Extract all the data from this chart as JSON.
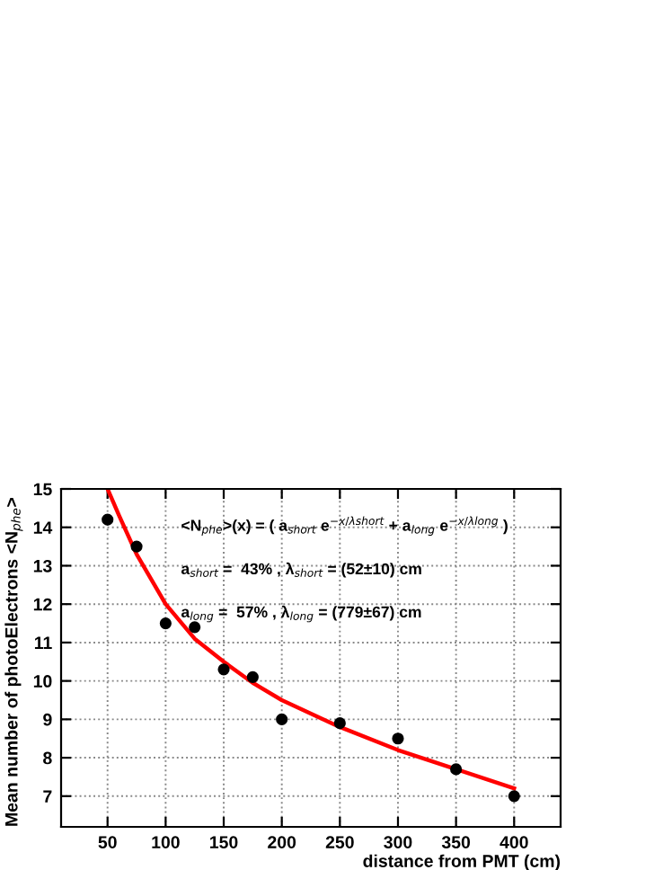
{
  "chart_data": {
    "type": "scatter",
    "xlabel": "distance from PMT (cm)",
    "ylabel": "Mean number of photoElectrons <N$_{phe}$>",
    "xlim": [
      10,
      440
    ],
    "ylim": [
      6.2,
      15
    ],
    "xticks": [
      50,
      100,
      150,
      200,
      250,
      300,
      350,
      400
    ],
    "yticks": [
      7,
      8,
      9,
      10,
      11,
      12,
      13,
      14,
      15
    ],
    "grid": true,
    "legend": false,
    "marker": "circle",
    "series": [
      {
        "color": "#000000",
        "x": [
          50,
          75,
          100,
          125,
          150,
          175,
          200,
          250,
          300,
          350,
          400
        ],
        "values": [
          14.2,
          13.5,
          11.5,
          11.4,
          10.3,
          10.1,
          9.0,
          8.9,
          8.5,
          7.7,
          7.0
        ]
      },
      {
        "type": "line",
        "color": "#ff0000",
        "marker": "none",
        "line_style": "solid",
        "x": [
          50,
          60,
          75,
          100,
          125,
          150,
          175,
          200,
          250,
          300,
          350,
          400
        ],
        "values": [
          15.0,
          14.3,
          13.3,
          12.0,
          11.1,
          10.5,
          9.95,
          9.5,
          8.8,
          8.2,
          7.7,
          7.2
        ]
      }
    ],
    "annotations": [
      "<N$_{phe}$>(x) = ( a$_{short}$ e$^{−x/λshort}$ + a$_{long}$ e$^{−x/λlong}$ )",
      "a$_{short}$ =  43% , λ$_{short}$ = (52±10) cm",
      "a$_{long}$ =  57% , λ$_{long}$ = (779±67) cm"
    ]
  }
}
